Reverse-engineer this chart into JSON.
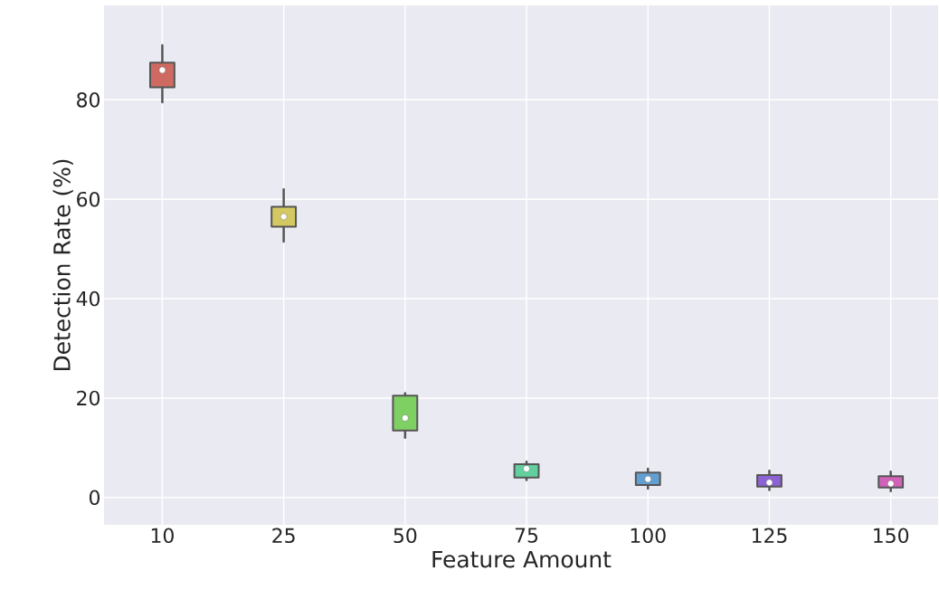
{
  "chart_data": {
    "type": "box",
    "xlabel": "Feature Amount",
    "ylabel": "Detection Rate (%)",
    "categories": [
      "10",
      "25",
      "50",
      "75",
      "100",
      "125",
      "150"
    ],
    "boxes": [
      {
        "low": 79.5,
        "q1": 82.5,
        "median": 86,
        "q3": 87.5,
        "high": 91
      },
      {
        "low": 51.5,
        "q1": 54.5,
        "median": 56.5,
        "q3": 58.5,
        "high": 62
      },
      {
        "low": 12,
        "q1": 13.5,
        "median": 16,
        "q3": 20.5,
        "high": 21
      },
      {
        "low": 3.5,
        "q1": 4,
        "median": 5.8,
        "q3": 6.7,
        "high": 7.2
      },
      {
        "low": 1.8,
        "q1": 2.5,
        "median": 3.7,
        "q3": 5,
        "high": 5.8
      },
      {
        "low": 1.5,
        "q1": 2.2,
        "median": 3,
        "q3": 4.5,
        "high": 5.4
      },
      {
        "low": 1.3,
        "q1": 2,
        "median": 2.8,
        "q3": 4.3,
        "high": 5.2
      }
    ],
    "colors": [
      "#cf6a62",
      "#d4c862",
      "#7fd062",
      "#62d09e",
      "#62a0d4",
      "#8c62d4",
      "#d062b8"
    ],
    "ylim": [
      -5.5,
      99
    ],
    "yticks": [
      0,
      20,
      40,
      60,
      80
    ],
    "grid": true
  }
}
